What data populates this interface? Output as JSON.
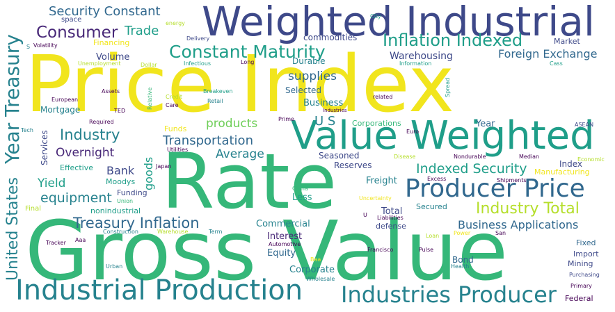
{
  "palette": {
    "yellow": "#f1e51d",
    "lime": "#b5de2b",
    "green": "#6ece58",
    "emerald": "#35b779",
    "seagreen": "#1f9e89",
    "teal": "#26828e",
    "blue": "#31688e",
    "indigo": "#3e4989",
    "purple": "#482878",
    "dark": "#440154"
  },
  "words": [
    {
      "text": "Price Index",
      "color": "yellow"
    },
    {
      "text": "Gross Value",
      "color": "emerald"
    },
    {
      "text": "Rate",
      "color": "emerald"
    },
    {
      "text": "Weighted Industrial",
      "color": "indigo"
    },
    {
      "text": "Value Weighted",
      "color": "seagreen"
    },
    {
      "text": "Industrial Production",
      "color": "teal"
    },
    {
      "text": "Producer Price",
      "color": "blue"
    },
    {
      "text": "Industries Producer",
      "color": "teal"
    },
    {
      "text": "Year Treasury",
      "color": "teal"
    },
    {
      "text": "United States",
      "color": "teal"
    },
    {
      "text": "Constant Maturity",
      "color": "seagreen"
    },
    {
      "text": "Inflation Indexed",
      "color": "seagreen"
    },
    {
      "text": "Treasury Inflation",
      "color": "blue"
    },
    {
      "text": "Industry Total",
      "color": "lime"
    },
    {
      "text": "Indexed Security",
      "color": "seagreen"
    },
    {
      "text": "Consumer",
      "color": "purple"
    },
    {
      "text": "Security Constant",
      "color": "blue"
    },
    {
      "text": "Industry",
      "color": "teal"
    },
    {
      "text": "Transportation",
      "color": "blue"
    },
    {
      "text": "Business Applications",
      "color": "blue"
    },
    {
      "text": "Foreign Exchange",
      "color": "blue"
    },
    {
      "text": "Trade",
      "color": "seagreen"
    },
    {
      "text": "equipment",
      "color": "teal"
    },
    {
      "text": "Overnight",
      "color": "purple"
    },
    {
      "text": "Average",
      "color": "teal"
    },
    {
      "text": "products",
      "color": "green"
    },
    {
      "text": "supplies",
      "color": "blue"
    },
    {
      "text": "U S",
      "color": "teal"
    },
    {
      "text": "Yield",
      "color": "seagreen"
    },
    {
      "text": "Bank",
      "color": "indigo"
    },
    {
      "text": "goods",
      "color": "seagreen"
    },
    {
      "text": "Warehousing",
      "color": "indigo"
    },
    {
      "text": "Volume",
      "color": "indigo"
    },
    {
      "text": "Mortgage",
      "color": "teal"
    },
    {
      "text": "Business",
      "color": "teal"
    },
    {
      "text": "Selected",
      "color": "blue"
    },
    {
      "text": "Durable",
      "color": "teal"
    },
    {
      "text": "commodities",
      "color": "indigo"
    },
    {
      "text": "Commercial",
      "color": "teal"
    },
    {
      "text": "Interest",
      "color": "purple"
    },
    {
      "text": "Equity",
      "color": "blue"
    },
    {
      "text": "Corporate",
      "color": "teal"
    },
    {
      "text": "Bond",
      "color": "blue"
    },
    {
      "text": "Total",
      "color": "indigo"
    },
    {
      "text": "Freight",
      "color": "teal"
    },
    {
      "text": "Less",
      "color": "seagreen"
    },
    {
      "text": "Year",
      "color": "blue"
    },
    {
      "text": "Index",
      "color": "indigo"
    },
    {
      "text": "Reserves",
      "color": "indigo"
    },
    {
      "text": "Seasoned",
      "color": "indigo"
    },
    {
      "text": "Services",
      "color": "indigo"
    },
    {
      "text": "Effective",
      "color": "seagreen"
    },
    {
      "text": "Moodys",
      "color": "seagreen"
    },
    {
      "text": "Funding",
      "color": "indigo"
    },
    {
      "text": "nonindustrial",
      "color": "seagreen"
    },
    {
      "text": "Fixed",
      "color": "blue"
    },
    {
      "text": "Import",
      "color": "indigo"
    },
    {
      "text": "Mining",
      "color": "indigo"
    },
    {
      "text": "defense",
      "color": "indigo"
    },
    {
      "text": "Secured",
      "color": "teal"
    },
    {
      "text": "Manufacturing",
      "color": "yellow"
    },
    {
      "text": "Financing",
      "color": "yellow"
    },
    {
      "text": "Corporations",
      "color": "emerald"
    },
    {
      "text": "Market",
      "color": "indigo"
    },
    {
      "text": "Funds",
      "color": "yellow"
    },
    {
      "text": "Final",
      "color": "lime"
    },
    {
      "text": "Required",
      "color": "dark"
    },
    {
      "text": "Credit",
      "color": "lime"
    },
    {
      "text": "Care",
      "color": "dark"
    },
    {
      "text": "Retail",
      "color": "teal"
    },
    {
      "text": "Breakeven",
      "color": "seagreen"
    },
    {
      "text": "Assets",
      "color": "dark"
    },
    {
      "text": "Relative",
      "color": "emerald"
    },
    {
      "text": "European",
      "color": "dark"
    },
    {
      "text": "TED",
      "color": "dark"
    },
    {
      "text": "Spread",
      "color": "seagreen"
    },
    {
      "text": "related",
      "color": "dark"
    },
    {
      "text": "Industries",
      "color": "dark"
    },
    {
      "text": "Prime",
      "color": "dark"
    },
    {
      "text": "Euro",
      "color": "dark"
    },
    {
      "text": "ASEAN",
      "color": "indigo"
    },
    {
      "text": "Japan",
      "color": "dark"
    },
    {
      "text": "Utilities",
      "color": "dark"
    },
    {
      "text": "Disease",
      "color": "lime"
    },
    {
      "text": "Nondurable",
      "color": "dark"
    },
    {
      "text": "Median",
      "color": "dark"
    },
    {
      "text": "Economic",
      "color": "lime"
    },
    {
      "text": "Excess",
      "color": "dark"
    },
    {
      "text": "Shipments",
      "color": "dark"
    },
    {
      "text": "China",
      "color": "emerald"
    },
    {
      "text": "Uncertainty",
      "color": "yellow"
    },
    {
      "text": "Union",
      "color": "emerald"
    },
    {
      "text": "Liabilities",
      "color": "dark"
    },
    {
      "text": "Construction",
      "color": "teal"
    },
    {
      "text": "Warehouse",
      "color": "lime"
    },
    {
      "text": "Term",
      "color": "teal"
    },
    {
      "text": "Tracker",
      "color": "dark"
    },
    {
      "text": "Aaa",
      "color": "dark"
    },
    {
      "text": "Automotive",
      "color": "dark"
    },
    {
      "text": "Loan",
      "color": "lime"
    },
    {
      "text": "Power",
      "color": "yellow"
    },
    {
      "text": "San",
      "color": "dark"
    },
    {
      "text": "Francisco",
      "color": "dark"
    },
    {
      "text": "Pulse",
      "color": "dark"
    },
    {
      "text": "Baa",
      "color": "yellow"
    },
    {
      "text": "Urban",
      "color": "teal"
    },
    {
      "text": "Wholesale",
      "color": "teal"
    },
    {
      "text": "Health",
      "color": "teal"
    },
    {
      "text": "Purchasing",
      "color": "indigo"
    },
    {
      "text": "Primary",
      "color": "dark"
    },
    {
      "text": "Federal",
      "color": "dark"
    },
    {
      "text": "space",
      "color": "indigo"
    },
    {
      "text": "energy",
      "color": "lime"
    },
    {
      "text": "Delivery",
      "color": "indigo"
    },
    {
      "text": "City",
      "color": "seagreen"
    },
    {
      "text": "Volatility",
      "color": "dark"
    },
    {
      "text": "Unemployment",
      "color": "lime"
    },
    {
      "text": "Dollar",
      "color": "lime"
    },
    {
      "text": "Infectious",
      "color": "seagreen"
    },
    {
      "text": "Long",
      "color": "dark"
    },
    {
      "text": "Information",
      "color": "seagreen"
    },
    {
      "text": "Cass",
      "color": "seagreen"
    },
    {
      "text": "S",
      "color": "teal"
    },
    {
      "text": "Tech",
      "color": "teal"
    },
    {
      "text": "U",
      "color": "dark"
    }
  ]
}
